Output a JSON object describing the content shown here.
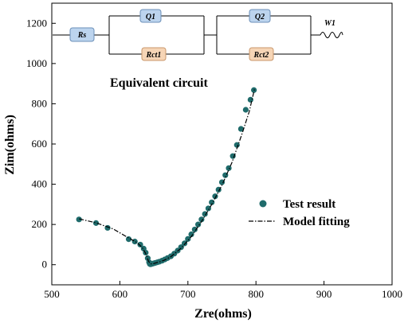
{
  "chart_data": {
    "type": "scatter",
    "xlabel": "Zre(ohms)",
    "ylabel": "Zim(ohms)",
    "xlim": [
      500,
      1000
    ],
    "ylim": [
      -100,
      1300
    ],
    "xticks": [
      500,
      600,
      700,
      800,
      900,
      1000
    ],
    "yticks": [
      0,
      200,
      400,
      600,
      800,
      1000,
      1200
    ],
    "legend_position": "center-right",
    "annotation": "Equivalent circuit",
    "circuit": {
      "rs": "Rs",
      "q1": "Q1",
      "rct1": "Rct1",
      "q2": "Q2",
      "rct2": "Rct2",
      "w": "W1",
      "q_color": "#bcd4ee",
      "r_color": "#f6d5b6"
    },
    "series": [
      {
        "name": "Test result",
        "kind": "markers",
        "color": "#1f6b6b",
        "x": [
          540,
          565,
          582,
          613,
          622,
          630,
          635,
          638,
          641,
          643,
          644,
          645,
          646,
          648,
          650,
          652,
          655,
          658,
          662,
          666,
          670,
          675,
          680,
          685,
          690,
          695,
          700,
          705,
          710,
          715,
          720,
          725,
          730,
          735,
          740,
          745,
          750,
          755,
          760,
          766,
          772,
          778,
          785,
          792,
          797
        ],
        "y": [
          225,
          207,
          183,
          127,
          115,
          100,
          80,
          60,
          32,
          12,
          4,
          2,
          3,
          5,
          7,
          9,
          12,
          15,
          20,
          26,
          33,
          42,
          55,
          70,
          87,
          106,
          128,
          151,
          175,
          200,
          225,
          252,
          280,
          310,
          340,
          373,
          410,
          445,
          480,
          540,
          595,
          675,
          770,
          820,
          868
        ]
      },
      {
        "name": "Model fitting",
        "kind": "line",
        "color": "#000000",
        "x": [
          540,
          565,
          590,
          612,
          625,
          633,
          638,
          642,
          645,
          648,
          652,
          658,
          665,
          675,
          690,
          705,
          720,
          735,
          750,
          765,
          780,
          790,
          798
        ],
        "y": [
          228,
          208,
          178,
          135,
          110,
          85,
          55,
          18,
          4,
          4,
          8,
          14,
          22,
          40,
          82,
          140,
          215,
          300,
          395,
          510,
          655,
          760,
          875
        ]
      }
    ]
  }
}
